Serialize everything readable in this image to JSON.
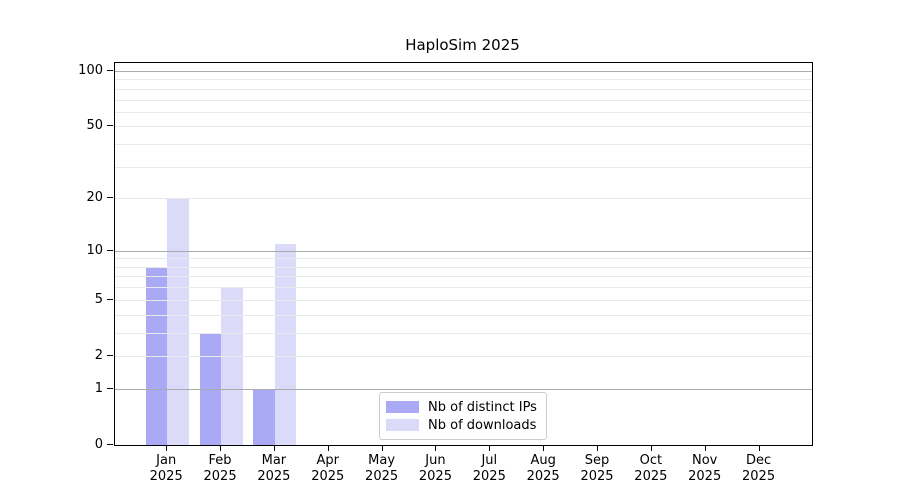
{
  "chart_data": {
    "type": "bar",
    "title": "HaploSim 2025",
    "xlabel": "",
    "ylabel": "",
    "categories": [
      {
        "month": "Jan",
        "year": "2025"
      },
      {
        "month": "Feb",
        "year": "2025"
      },
      {
        "month": "Mar",
        "year": "2025"
      },
      {
        "month": "Apr",
        "year": "2025"
      },
      {
        "month": "May",
        "year": "2025"
      },
      {
        "month": "Jun",
        "year": "2025"
      },
      {
        "month": "Jul",
        "year": "2025"
      },
      {
        "month": "Aug",
        "year": "2025"
      },
      {
        "month": "Sep",
        "year": "2025"
      },
      {
        "month": "Oct",
        "year": "2025"
      },
      {
        "month": "Nov",
        "year": "2025"
      },
      {
        "month": "Dec",
        "year": "2025"
      }
    ],
    "series": [
      {
        "name": "Nb of distinct IPs",
        "color": "#a9a9f6",
        "values": [
          8,
          3,
          1,
          0,
          0,
          0,
          0,
          0,
          0,
          0,
          0,
          0
        ]
      },
      {
        "name": "Nb of downloads",
        "color": "#dbdbf9",
        "values": [
          20,
          6,
          11,
          0,
          0,
          0,
          0,
          0,
          0,
          0,
          0,
          0
        ]
      }
    ],
    "yscale": "log1p",
    "ylim": [
      0,
      100
    ],
    "yticks": [
      0,
      1,
      2,
      5,
      10,
      20,
      50,
      100
    ],
    "major_gridline_values": [
      1,
      10,
      100
    ],
    "light_gridline_values": [
      2,
      5,
      20,
      50
    ],
    "minor_gridline_values": [
      3,
      4,
      6,
      7,
      8,
      9,
      30,
      40,
      60,
      70,
      80,
      90
    ],
    "grid": true,
    "legend_position": "lower center",
    "colors": {
      "distinct_ips": "#a9a9f6",
      "downloads": "#dbdbf9",
      "major_grid": "#ababab",
      "minor_grid": "#e9e9e9",
      "spine": "#000000",
      "text": "#000000",
      "legend_border": "#cccccc",
      "background": "#ffffff"
    }
  }
}
